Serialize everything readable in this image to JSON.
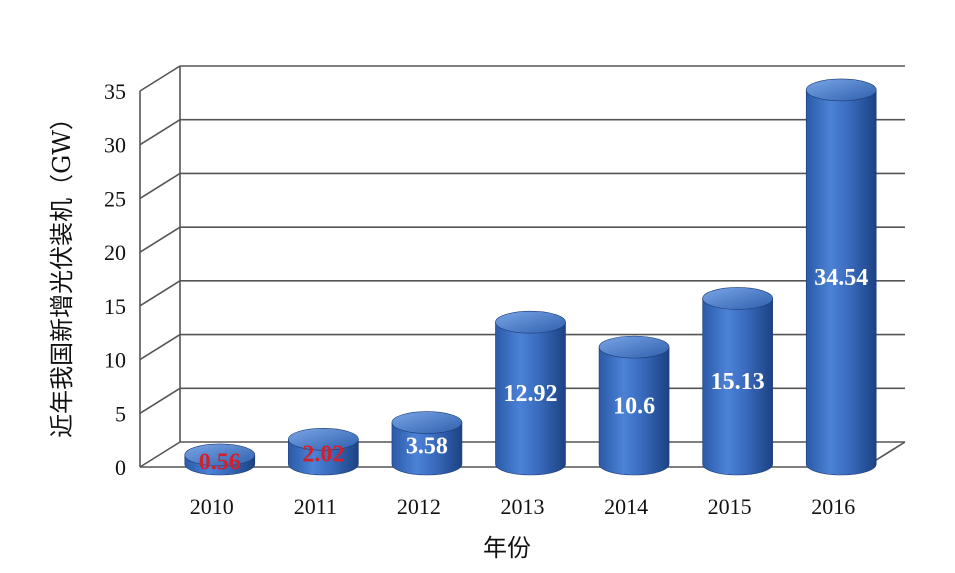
{
  "chart_data": {
    "type": "bar",
    "style": "3d-cylinder",
    "categories": [
      "2010",
      "2011",
      "2012",
      "2013",
      "2014",
      "2015",
      "2016"
    ],
    "values": [
      0.56,
      2.02,
      3.58,
      12.92,
      10.6,
      15.13,
      34.54
    ],
    "data_labels": [
      "0.56",
      "2.02",
      "3.58",
      "12.92",
      "10.6",
      "15.13",
      "34.54"
    ],
    "data_label_colors": [
      "#d0212d",
      "#d0212d",
      "#ffffff",
      "#ffffff",
      "#ffffff",
      "#ffffff",
      "#ffffff"
    ],
    "yticks": [
      "0",
      "5",
      "10",
      "15",
      "20",
      "25",
      "30",
      "35"
    ],
    "ylim": [
      0,
      35
    ],
    "xlabel": "年份",
    "ylabel": "近年我国新增光伏装机（GW）",
    "grid": true,
    "legend": "none",
    "colors": {
      "bar": "#3a6cbf",
      "bar_dark": "#1f4a8e",
      "bar_light": "#6f9be0",
      "grid": "#555555"
    }
  }
}
